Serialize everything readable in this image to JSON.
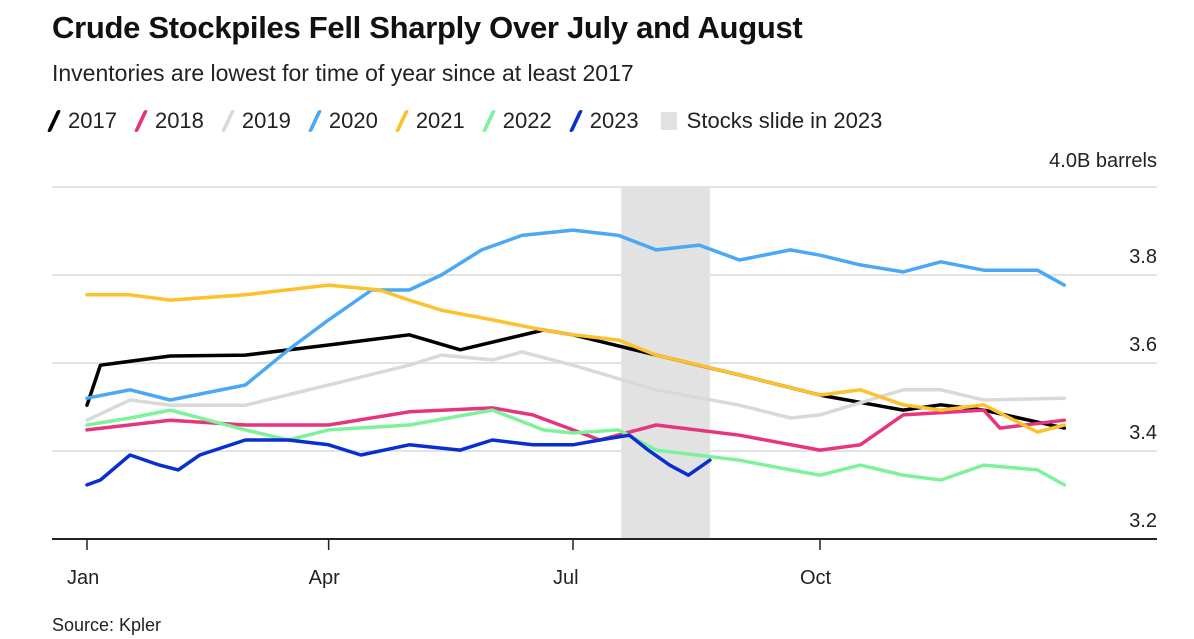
{
  "title": "Crude Stockpiles Fell Sharply Over July and August",
  "subtitle": "Inventories are lowest for time of year since at least 2017",
  "source": "Source: Kpler",
  "chart_data": {
    "type": "line",
    "title": "Crude Stockpiles Fell Sharply Over July and August",
    "subtitle": "Inventories are lowest for time of year since at least 2017",
    "ylabel": "4.0B barrels",
    "ylim": [
      3.2,
      4.0
    ],
    "yticks": [
      "3.2",
      "3.4",
      "3.6",
      "3.8"
    ],
    "y_unit_label": "4.0B barrels",
    "xticks": [
      {
        "date": "01-01",
        "label": "Jan"
      },
      {
        "date": "04-01",
        "label": "Apr"
      },
      {
        "date": "07-01",
        "label": "Jul"
      },
      {
        "date": "10-01",
        "label": "Oct"
      }
    ],
    "xlim": [
      "01-01",
      "12-31"
    ],
    "grid": "horizontal",
    "legend_placement": "top",
    "shaded_region": {
      "label": "Stocks slide in 2023",
      "start": "07-19",
      "end": "08-21",
      "color": "#e2e2e2"
    },
    "series": [
      {
        "name": "2017",
        "color": "#000000",
        "points": [
          [
            "01-01",
            3.504
          ],
          [
            "01-06",
            3.595
          ],
          [
            "02-01",
            3.616
          ],
          [
            "03-01",
            3.618
          ],
          [
            "04-01",
            3.641
          ],
          [
            "05-01",
            3.664
          ],
          [
            "05-20",
            3.63
          ],
          [
            "06-20",
            3.675
          ],
          [
            "07-01",
            3.664
          ],
          [
            "08-01",
            3.618
          ],
          [
            "09-01",
            3.573
          ],
          [
            "10-01",
            3.527
          ],
          [
            "11-01",
            3.493
          ],
          [
            "11-15",
            3.505
          ],
          [
            "12-01",
            3.493
          ],
          [
            "12-31",
            3.452
          ]
        ]
      },
      {
        "name": "2018",
        "color": "#e6347f",
        "points": [
          [
            "01-01",
            3.448
          ],
          [
            "02-01",
            3.47
          ],
          [
            "03-01",
            3.459
          ],
          [
            "04-01",
            3.459
          ],
          [
            "05-01",
            3.489
          ],
          [
            "06-01",
            3.498
          ],
          [
            "06-16",
            3.482
          ],
          [
            "07-01",
            3.448
          ],
          [
            "07-11",
            3.425
          ],
          [
            "08-01",
            3.459
          ],
          [
            "09-01",
            3.436
          ],
          [
            "10-01",
            3.402
          ],
          [
            "10-16",
            3.414
          ],
          [
            "11-01",
            3.482
          ],
          [
            "12-01",
            3.493
          ],
          [
            "12-07",
            3.452
          ],
          [
            "12-31",
            3.47
          ]
        ]
      },
      {
        "name": "2019",
        "color": "#d9d9d9",
        "points": [
          [
            "01-01",
            3.47
          ],
          [
            "01-17",
            3.516
          ],
          [
            "02-01",
            3.504
          ],
          [
            "03-01",
            3.504
          ],
          [
            "04-01",
            3.55
          ],
          [
            "05-01",
            3.595
          ],
          [
            "05-13",
            3.618
          ],
          [
            "06-01",
            3.607
          ],
          [
            "06-12",
            3.625
          ],
          [
            "07-01",
            3.595
          ],
          [
            "08-01",
            3.539
          ],
          [
            "09-01",
            3.504
          ],
          [
            "09-20",
            3.475
          ],
          [
            "10-01",
            3.482
          ],
          [
            "11-01",
            3.539
          ],
          [
            "11-15",
            3.539
          ],
          [
            "12-01",
            3.516
          ],
          [
            "12-31",
            3.52
          ]
        ]
      },
      {
        "name": "2020",
        "color": "#4aa8f5",
        "points": [
          [
            "01-01",
            3.52
          ],
          [
            "01-17",
            3.539
          ],
          [
            "02-01",
            3.516
          ],
          [
            "03-01",
            3.55
          ],
          [
            "03-17",
            3.63
          ],
          [
            "04-01",
            3.698
          ],
          [
            "04-17",
            3.766
          ],
          [
            "05-01",
            3.766
          ],
          [
            "05-13",
            3.8
          ],
          [
            "05-28",
            3.857
          ],
          [
            "06-12",
            3.89
          ],
          [
            "07-01",
            3.902
          ],
          [
            "07-18",
            3.89
          ],
          [
            "08-01",
            3.857
          ],
          [
            "08-17",
            3.868
          ],
          [
            "09-01",
            3.834
          ],
          [
            "09-20",
            3.857
          ],
          [
            "10-01",
            3.845
          ],
          [
            "10-16",
            3.823
          ],
          [
            "11-01",
            3.807
          ],
          [
            "11-15",
            3.83
          ],
          [
            "12-01",
            3.811
          ],
          [
            "12-21",
            3.811
          ],
          [
            "12-31",
            3.777
          ]
        ]
      },
      {
        "name": "2021",
        "color": "#fcc22c",
        "points": [
          [
            "01-01",
            3.755
          ],
          [
            "01-17",
            3.755
          ],
          [
            "02-01",
            3.743
          ],
          [
            "03-01",
            3.755
          ],
          [
            "04-01",
            3.777
          ],
          [
            "04-20",
            3.766
          ],
          [
            "05-01",
            3.743
          ],
          [
            "05-13",
            3.72
          ],
          [
            "06-01",
            3.698
          ],
          [
            "06-20",
            3.675
          ],
          [
            "07-01",
            3.664
          ],
          [
            "07-18",
            3.652
          ],
          [
            "08-01",
            3.618
          ],
          [
            "08-17",
            3.595
          ],
          [
            "09-01",
            3.573
          ],
          [
            "10-01",
            3.527
          ],
          [
            "10-16",
            3.539
          ],
          [
            "11-01",
            3.505
          ],
          [
            "11-15",
            3.493
          ],
          [
            "12-01",
            3.505
          ],
          [
            "12-21",
            3.443
          ],
          [
            "12-31",
            3.459
          ]
        ]
      },
      {
        "name": "2022",
        "color": "#7df29a",
        "points": [
          [
            "01-01",
            3.459
          ],
          [
            "01-17",
            3.475
          ],
          [
            "02-01",
            3.493
          ],
          [
            "03-01",
            3.448
          ],
          [
            "03-17",
            3.425
          ],
          [
            "04-01",
            3.448
          ],
          [
            "05-01",
            3.459
          ],
          [
            "06-01",
            3.493
          ],
          [
            "06-20",
            3.448
          ],
          [
            "07-01",
            3.441
          ],
          [
            "07-18",
            3.448
          ],
          [
            "08-01",
            3.402
          ],
          [
            "09-01",
            3.379
          ],
          [
            "09-20",
            3.357
          ],
          [
            "10-01",
            3.345
          ],
          [
            "10-16",
            3.368
          ],
          [
            "11-01",
            3.345
          ],
          [
            "11-15",
            3.334
          ],
          [
            "12-01",
            3.368
          ],
          [
            "12-21",
            3.357
          ],
          [
            "12-31",
            3.323
          ]
        ]
      },
      {
        "name": "2023",
        "color": "#0a2fd1",
        "points": [
          [
            "01-01",
            3.323
          ],
          [
            "01-06",
            3.334
          ],
          [
            "01-17",
            3.391
          ],
          [
            "01-28",
            3.368
          ],
          [
            "02-04",
            3.357
          ],
          [
            "02-12",
            3.391
          ],
          [
            "03-01",
            3.425
          ],
          [
            "03-17",
            3.425
          ],
          [
            "04-01",
            3.414
          ],
          [
            "04-13",
            3.391
          ],
          [
            "05-01",
            3.414
          ],
          [
            "05-20",
            3.402
          ],
          [
            "06-01",
            3.425
          ],
          [
            "06-16",
            3.414
          ],
          [
            "07-01",
            3.414
          ],
          [
            "07-11",
            3.425
          ],
          [
            "07-22",
            3.436
          ],
          [
            "07-29",
            3.402
          ],
          [
            "08-06",
            3.368
          ],
          [
            "08-13",
            3.345
          ],
          [
            "08-21",
            3.379
          ]
        ]
      }
    ]
  }
}
